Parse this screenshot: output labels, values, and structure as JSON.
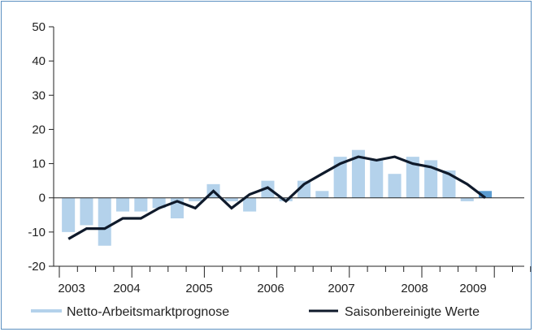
{
  "chart_data": {
    "type": "bar",
    "title": "",
    "xlabel": "",
    "ylabel": "",
    "ylim": [
      -20,
      50
    ],
    "yticks": [
      -20,
      -10,
      0,
      10,
      20,
      30,
      40,
      50
    ],
    "year_labels": [
      "2003",
      "2004",
      "2005",
      "2006",
      "2007",
      "2008",
      "2009"
    ],
    "x": [
      "2003 Q1",
      "2003 Q2",
      "2003 Q3",
      "2003 Q4",
      "2004 Q1",
      "2004 Q2",
      "2004 Q3",
      "2004 Q4",
      "2005 Q1",
      "2005 Q2",
      "2005 Q3",
      "2005 Q4",
      "2006 Q1",
      "2006 Q2",
      "2006 Q3",
      "2006 Q4",
      "2007 Q1",
      "2007 Q2",
      "2007 Q3",
      "2007 Q4",
      "2008 Q1",
      "2008 Q2",
      "2008 Q3",
      "2008 Q4",
      "2009 Q1",
      "2009 Q2"
    ],
    "series": [
      {
        "name": "Netto-Arbeitsmarktprognose",
        "kind": "bar",
        "color": "#b4d2eb",
        "highlight_color": "#5a9bd0",
        "values": [
          -10,
          -8,
          -14,
          -4,
          -4,
          -3,
          -6,
          -1,
          4,
          -1,
          -4,
          5,
          -1,
          5,
          2,
          12,
          14,
          11,
          7,
          12,
          11,
          8,
          -1,
          2,
          null,
          null
        ]
      },
      {
        "name": "Saisonbereinigte Werte",
        "kind": "line",
        "color": "#0f1a2b",
        "values": [
          -12,
          -9,
          -9,
          -6,
          -6,
          -3,
          -1,
          -3,
          2,
          -3,
          1,
          3,
          -1,
          4,
          7,
          10,
          12,
          11,
          12,
          10,
          9,
          7,
          4,
          0,
          null,
          null
        ]
      }
    ],
    "legend_position": "bottom"
  }
}
